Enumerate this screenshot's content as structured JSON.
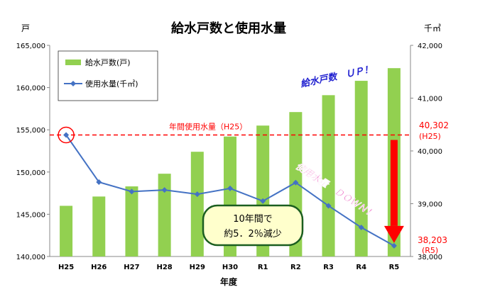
{
  "chart_data": {
    "type": "bar+line",
    "title": "給水戸数と使用水量",
    "xlabel": "年度",
    "y_left_unit": "戸",
    "y_right_unit": "千㎥",
    "categories": [
      "H25",
      "H26",
      "H27",
      "H28",
      "H29",
      "H30",
      "R1",
      "R2",
      "R3",
      "R4",
      "R5"
    ],
    "y_left": {
      "min": 140000,
      "max": 165000,
      "ticks": [
        "140,000",
        "145,000",
        "150,000",
        "155,000",
        "160,000",
        "165,000"
      ]
    },
    "y_right": {
      "min": 38000,
      "max": 42000,
      "ticks": [
        "38,000",
        "39,000",
        "40,000",
        "41,000",
        "42,000"
      ]
    },
    "series": [
      {
        "name": "給水戸数(戸)",
        "type": "bar",
        "axis": "left",
        "color": "#92d050",
        "values": [
          146000,
          147100,
          148300,
          149800,
          152400,
          154200,
          155500,
          157100,
          159100,
          160800,
          162300
        ]
      },
      {
        "name": "使用水量(千㎥)",
        "type": "line",
        "axis": "right",
        "color": "#4472c4",
        "values": [
          40302,
          39410,
          39230,
          39260,
          39180,
          39290,
          39050,
          39400,
          38960,
          38550,
          38203
        ]
      }
    ],
    "legend_position": "top-left",
    "reference_line": {
      "label": "年間使用水量（H25）",
      "value": 40302,
      "axis": "right",
      "color": "#ff0000"
    },
    "annotations": {
      "up_text": "給水戸数　ＵＰ！",
      "down_text": "使用水量　ＤＯＷＮ！",
      "callout_line1": "10年間で",
      "callout_line2": "約5．2％減少",
      "start_value": "40,302",
      "start_label": "(H25)",
      "end_value": "38,203",
      "end_label": "(R5)"
    },
    "grid": false
  }
}
